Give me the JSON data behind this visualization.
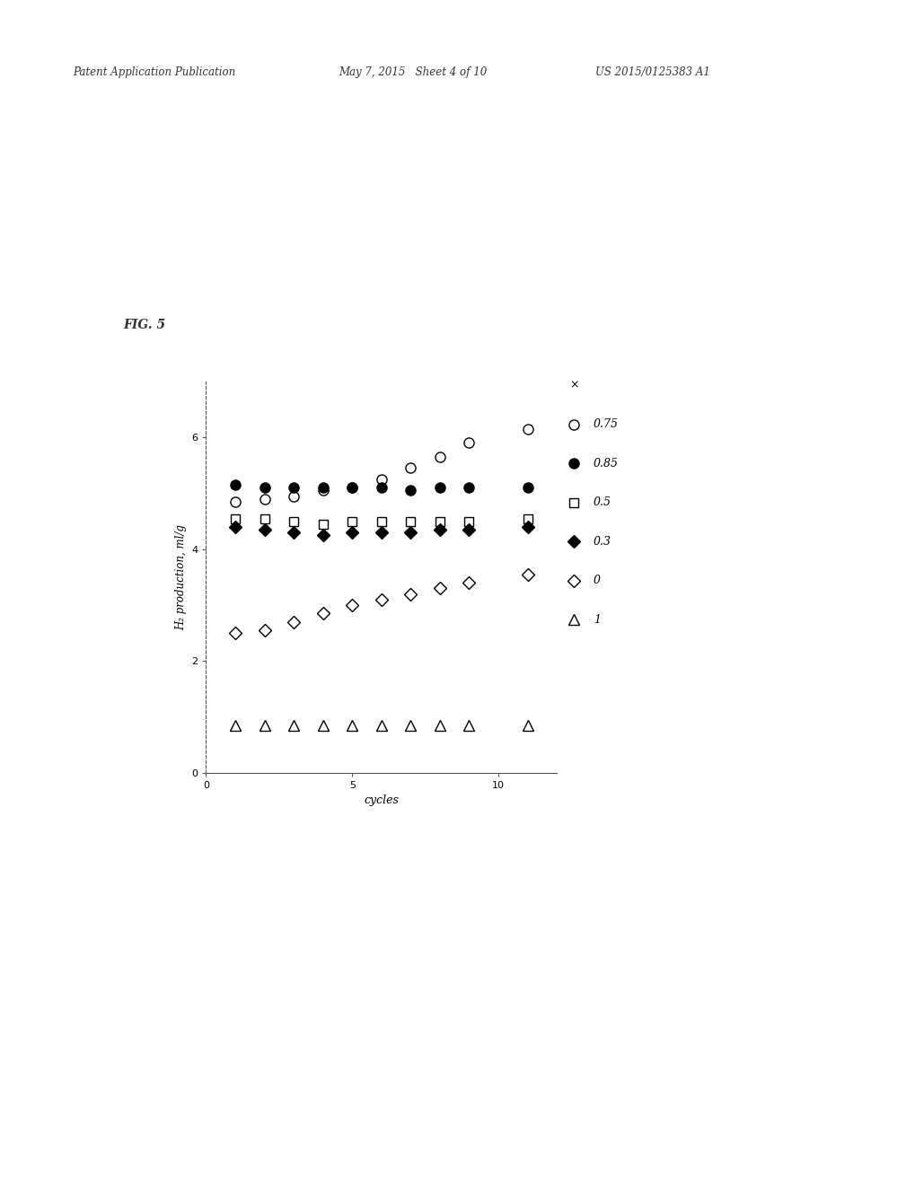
{
  "fig_label": "FIG. 5",
  "xlabel": "cycles",
  "ylabel": "H₂ production, ml/g",
  "xlim": [
    0,
    12
  ],
  "ylim": [
    0,
    7
  ],
  "yticks": [
    0,
    2,
    4,
    6
  ],
  "xtick_positions": [
    5,
    10
  ],
  "series": {
    "0.75": {
      "x": [
        1,
        2,
        3,
        4,
        5,
        6,
        7,
        8,
        9,
        11
      ],
      "y": [
        4.85,
        4.9,
        4.95,
        5.05,
        5.1,
        5.25,
        5.45,
        5.65,
        5.9,
        6.15
      ],
      "marker": "o",
      "fillstyle": "none",
      "markersize": 8
    },
    "0.85": {
      "x": [
        1,
        2,
        3,
        4,
        5,
        6,
        7,
        8,
        9,
        11
      ],
      "y": [
        5.15,
        5.1,
        5.1,
        5.1,
        5.1,
        5.1,
        5.05,
        5.1,
        5.1,
        5.1
      ],
      "marker": "o",
      "fillstyle": "full",
      "markersize": 8
    },
    "0.5": {
      "x": [
        1,
        2,
        3,
        4,
        5,
        6,
        7,
        8,
        9,
        11
      ],
      "y": [
        4.55,
        4.55,
        4.5,
        4.45,
        4.5,
        4.5,
        4.5,
        4.5,
        4.5,
        4.55
      ],
      "marker": "s",
      "fillstyle": "none",
      "markersize": 7
    },
    "0.3": {
      "x": [
        1,
        2,
        3,
        4,
        5,
        6,
        7,
        8,
        9,
        11
      ],
      "y": [
        4.4,
        4.35,
        4.3,
        4.25,
        4.3,
        4.3,
        4.3,
        4.35,
        4.35,
        4.4
      ],
      "marker": "D",
      "fillstyle": "full",
      "markersize": 7
    },
    "0": {
      "x": [
        1,
        2,
        3,
        4,
        5,
        6,
        7,
        8,
        9,
        11
      ],
      "y": [
        2.5,
        2.55,
        2.7,
        2.85,
        3.0,
        3.1,
        3.2,
        3.3,
        3.4,
        3.55
      ],
      "marker": "D",
      "fillstyle": "none",
      "markersize": 7
    },
    "1": {
      "x": [
        1,
        2,
        3,
        4,
        5,
        6,
        7,
        8,
        9,
        11
      ],
      "y": [
        0.85,
        0.85,
        0.85,
        0.85,
        0.85,
        0.85,
        0.85,
        0.85,
        0.85,
        0.85
      ],
      "marker": "^",
      "fillstyle": "none",
      "markersize": 8
    }
  },
  "header_left": "Patent Application Publication",
  "header_mid": "May 7, 2015   Sheet 4 of 10",
  "header_right": "US 2015/0125383 A1",
  "background_color": "#ffffff"
}
